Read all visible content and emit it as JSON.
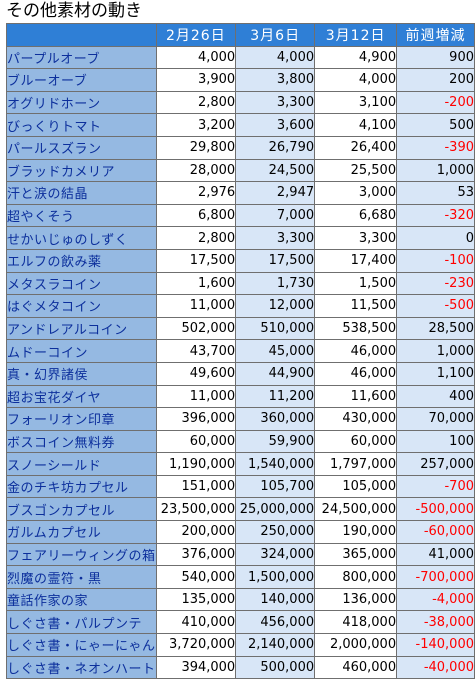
{
  "title": "その他素材の動き",
  "columns": [
    "2月26日",
    "3月6日",
    "3月12日",
    "前週増減"
  ],
  "rows": [
    {
      "name": "パープルオーブ",
      "values": [
        "4,000",
        "4,000",
        "4,900",
        "900"
      ]
    },
    {
      "name": "ブルーオーブ",
      "values": [
        "3,900",
        "3,800",
        "4,000",
        "200"
      ]
    },
    {
      "name": "オグリドホーン",
      "values": [
        "2,800",
        "3,300",
        "3,100",
        "-200"
      ]
    },
    {
      "name": "びっくりトマト",
      "values": [
        "3,200",
        "3,600",
        "4,100",
        "500"
      ]
    },
    {
      "name": "パールスズラン",
      "values": [
        "29,800",
        "26,790",
        "26,400",
        "-390"
      ]
    },
    {
      "name": "ブラッドカメリア",
      "values": [
        "28,000",
        "24,500",
        "25,500",
        "1,000"
      ]
    },
    {
      "name": "汗と涙の結晶",
      "values": [
        "2,976",
        "2,947",
        "3,000",
        "53"
      ]
    },
    {
      "name": "超やくそう",
      "values": [
        "6,800",
        "7,000",
        "6,680",
        "-320"
      ]
    },
    {
      "name": "せかいじゅのしずく",
      "values": [
        "2,800",
        "3,300",
        "3,300",
        "0"
      ]
    },
    {
      "name": "エルフの飲み薬",
      "values": [
        "17,500",
        "17,500",
        "17,400",
        "-100"
      ]
    },
    {
      "name": "メタスラコイン",
      "values": [
        "1,600",
        "1,730",
        "1,500",
        "-230"
      ]
    },
    {
      "name": "はぐメタコイン",
      "values": [
        "11,000",
        "12,000",
        "11,500",
        "-500"
      ]
    },
    {
      "name": "アンドレアルコイン",
      "values": [
        "502,000",
        "510,000",
        "538,500",
        "28,500"
      ]
    },
    {
      "name": "ムドーコイン",
      "values": [
        "43,700",
        "45,000",
        "46,000",
        "1,000"
      ]
    },
    {
      "name": "真・幻界諸侯",
      "values": [
        "49,600",
        "44,900",
        "46,000",
        "1,100"
      ]
    },
    {
      "name": "超お宝花ダイヤ",
      "values": [
        "11,000",
        "11,200",
        "11,600",
        "400"
      ]
    },
    {
      "name": "フォーリオン印章",
      "values": [
        "396,000",
        "360,000",
        "430,000",
        "70,000"
      ]
    },
    {
      "name": "ボスコイン無料券",
      "values": [
        "60,000",
        "59,900",
        "60,000",
        "100"
      ]
    },
    {
      "name": "スノーシールド",
      "values": [
        "1,190,000",
        "1,540,000",
        "1,797,000",
        "257,000"
      ]
    },
    {
      "name": "金のチキ坊カプセル",
      "values": [
        "151,000",
        "105,700",
        "105,000",
        "-700"
      ]
    },
    {
      "name": "ブスゴンカプセル",
      "values": [
        "23,500,000",
        "25,000,000",
        "24,500,000",
        "-500,000"
      ]
    },
    {
      "name": "ガルムカプセル",
      "values": [
        "200,000",
        "250,000",
        "190,000",
        "-60,000"
      ]
    },
    {
      "name": "フェアリーウィングの箱",
      "values": [
        "376,000",
        "324,000",
        "365,000",
        "41,000"
      ]
    },
    {
      "name": "烈魔の霊符・黒",
      "values": [
        "540,000",
        "1,500,000",
        "800,000",
        "-700,000"
      ]
    },
    {
      "name": "童話作家の家",
      "values": [
        "135,000",
        "140,000",
        "136,000",
        "-4,000"
      ]
    },
    {
      "name": "しぐさ書・パルプンテ",
      "values": [
        "410,000",
        "456,000",
        "418,000",
        "-38,000"
      ]
    },
    {
      "name": "しぐさ書・にゃーにゃん",
      "values": [
        "3,720,000",
        "2,140,000",
        "2,000,000",
        "-140,000"
      ]
    },
    {
      "name": "しぐさ書・ネオンハート",
      "values": [
        "394,000",
        "500,000",
        "460,000",
        "-40,000"
      ]
    }
  ],
  "colors": {
    "header_bg": "#2f7fd6",
    "name_bg": "#95b9e2",
    "name_text": "#0c2f9c",
    "alt_bg": "#d8e6f7",
    "negative": "#ff0000"
  }
}
